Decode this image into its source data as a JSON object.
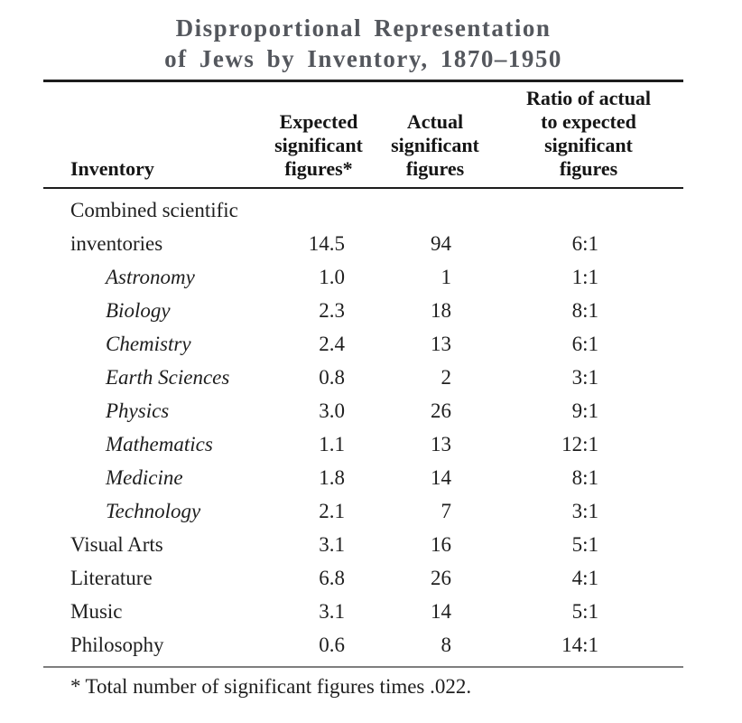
{
  "title": {
    "line1": "Disproportional Representation",
    "line2": "of Jews by Inventory, 1870–1950"
  },
  "table": {
    "header": {
      "col1_lines": [
        "Inventory"
      ],
      "col2_lines": [
        "Expected",
        "significant",
        "figures*"
      ],
      "col3_lines": [
        "Actual",
        "significant",
        "figures"
      ],
      "col4_lines": [
        "Ratio of actual",
        "to expected",
        "significant",
        "figures"
      ]
    },
    "rows": [
      {
        "label_lines": [
          "Combined scientific",
          "inventories"
        ],
        "italic": false,
        "indent": false,
        "expected": "14.5",
        "actual": "94",
        "ratio": "6:1"
      },
      {
        "label_lines": [
          "Astronomy"
        ],
        "italic": true,
        "indent": true,
        "expected": "1.0",
        "actual": "1",
        "ratio": "1:1"
      },
      {
        "label_lines": [
          "Biology"
        ],
        "italic": true,
        "indent": true,
        "expected": "2.3",
        "actual": "18",
        "ratio": "8:1"
      },
      {
        "label_lines": [
          "Chemistry"
        ],
        "italic": true,
        "indent": true,
        "expected": "2.4",
        "actual": "13",
        "ratio": "6:1"
      },
      {
        "label_lines": [
          "Earth Sciences"
        ],
        "italic": true,
        "indent": true,
        "expected": "0.8",
        "actual": "2",
        "ratio": "3:1"
      },
      {
        "label_lines": [
          "Physics"
        ],
        "italic": true,
        "indent": true,
        "expected": "3.0",
        "actual": "26",
        "ratio": "9:1"
      },
      {
        "label_lines": [
          "Mathematics"
        ],
        "italic": true,
        "indent": true,
        "expected": "1.1",
        "actual": "13",
        "ratio": "12:1"
      },
      {
        "label_lines": [
          "Medicine"
        ],
        "italic": true,
        "indent": true,
        "expected": "1.8",
        "actual": "14",
        "ratio": "8:1"
      },
      {
        "label_lines": [
          "Technology"
        ],
        "italic": true,
        "indent": true,
        "expected": "2.1",
        "actual": "7",
        "ratio": "3:1"
      },
      {
        "label_lines": [
          "Visual Arts"
        ],
        "italic": false,
        "indent": false,
        "expected": "3.1",
        "actual": "16",
        "ratio": "5:1"
      },
      {
        "label_lines": [
          "Literature"
        ],
        "italic": false,
        "indent": false,
        "expected": "6.8",
        "actual": "26",
        "ratio": "4:1"
      },
      {
        "label_lines": [
          "Music"
        ],
        "italic": false,
        "indent": false,
        "expected": "3.1",
        "actual": "14",
        "ratio": "5:1"
      },
      {
        "label_lines": [
          "Philosophy"
        ],
        "italic": false,
        "indent": false,
        "expected": "0.6",
        "actual": "8",
        "ratio": "14:1"
      }
    ],
    "footnote_marker": "*",
    "footnote_text": "Total number of significant figures times .022."
  },
  "colors": {
    "title_gray": "#54575d",
    "text_black": "#1d1d1d",
    "rule_heavy": "#1d1d1d",
    "rule_light": "#7e7e7e",
    "background": "#ffffff"
  }
}
